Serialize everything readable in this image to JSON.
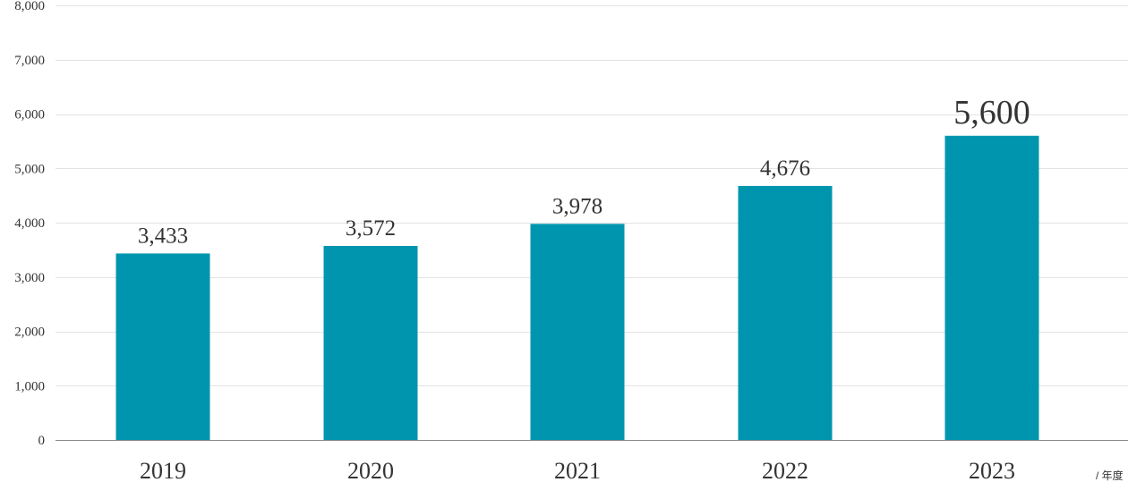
{
  "chart_data": {
    "type": "bar",
    "categories": [
      "2019",
      "2020",
      "2021",
      "2022",
      "2023"
    ],
    "values": [
      3433,
      3572,
      3978,
      4676,
      5600
    ],
    "data_labels": [
      "3,433",
      "3,572",
      "3,978",
      "4,676",
      "5,600"
    ],
    "ylim": [
      0,
      8000
    ],
    "yticks": [
      0,
      1000,
      2000,
      3000,
      4000,
      5000,
      6000,
      7000,
      8000
    ],
    "ytick_labels": [
      "0",
      "1,000",
      "2,000",
      "3,000",
      "4,000",
      "5,000",
      "6,000",
      "7,000",
      "8,000"
    ],
    "xunit": "/ 年度",
    "bar_color": "#0095ae",
    "highlight_last_label": true,
    "grid": true
  }
}
